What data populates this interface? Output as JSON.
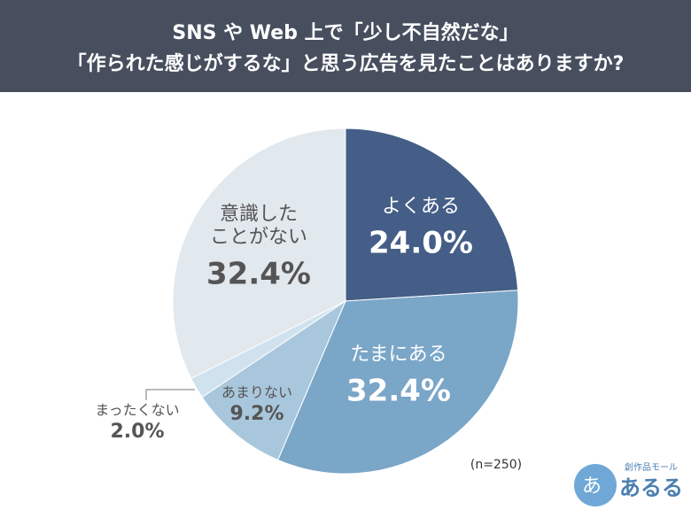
{
  "chart_data": {
    "type": "pie",
    "title": [
      "SNS や Web 上で「少し不自然だな」",
      "「作られた感じがするな」と思う広告を見たことはありますか?"
    ],
    "categories": [
      "よくある",
      "たまにある",
      "あまりない",
      "まったくない",
      "意識した\nことがない"
    ],
    "values": [
      24.0,
      32.4,
      9.2,
      2.0,
      32.4
    ],
    "value_labels": [
      "24.0%",
      "32.4%",
      "9.2%",
      "2.0%",
      "32.4%"
    ],
    "colors": [
      "#445e87",
      "#7aa6c8",
      "#a9c7dc",
      "#cfe2ee",
      "#e1e8ee"
    ],
    "note": "(n=250)"
  },
  "logo": {
    "tagline": "創作品モール",
    "name": "あるる",
    "icon": "あ"
  }
}
